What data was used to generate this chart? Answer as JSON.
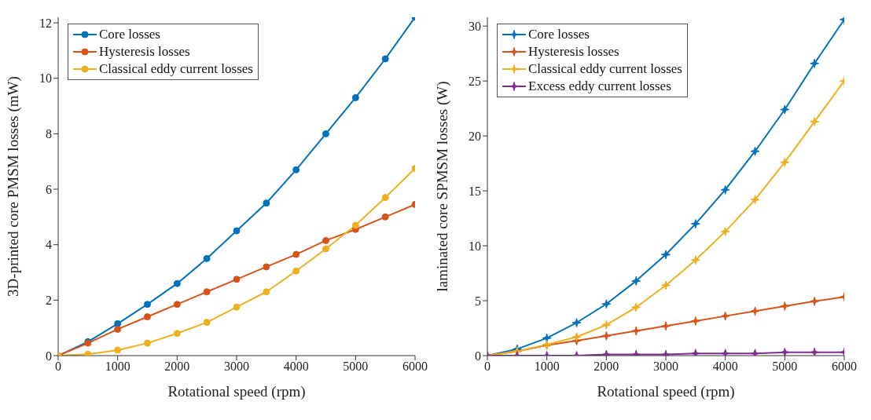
{
  "chart_data": [
    {
      "type": "line",
      "xlabel": "Rotational speed (rpm)",
      "ylabel": "3D-printed core PMSM losses (mW)",
      "x": [
        0,
        500,
        1000,
        1500,
        2000,
        2500,
        3000,
        3500,
        4000,
        4500,
        5000,
        5500,
        6000
      ],
      "xlim": [
        0,
        6000
      ],
      "xticks": [
        0,
        1000,
        2000,
        3000,
        4000,
        5000,
        6000
      ],
      "ylim": [
        0,
        12.2
      ],
      "yticks": [
        0,
        2,
        4,
        6,
        8,
        10,
        12
      ],
      "marker": "circle",
      "legend": "top left",
      "grid": false,
      "series": [
        {
          "name": "Core losses",
          "color": "#0072bd",
          "values": [
            0,
            0.5,
            1.15,
            1.85,
            2.6,
            3.5,
            4.5,
            5.5,
            6.7,
            8.0,
            9.3,
            10.7,
            12.2
          ]
        },
        {
          "name": "Hysteresis losses",
          "color": "#d95319",
          "values": [
            0,
            0.45,
            0.95,
            1.4,
            1.85,
            2.3,
            2.75,
            3.2,
            3.65,
            4.15,
            4.55,
            5.0,
            5.45
          ]
        },
        {
          "name": "Classical eddy current losses",
          "color": "#edb120",
          "values": [
            0,
            0.05,
            0.2,
            0.45,
            0.8,
            1.2,
            1.75,
            2.3,
            3.05,
            3.85,
            4.7,
            5.7,
            6.75
          ]
        }
      ]
    },
    {
      "type": "line",
      "xlabel": "Rotational speed (rpm)",
      "ylabel": "laminated core SPMSM losses (W)",
      "x": [
        0,
        500,
        1000,
        1500,
        2000,
        2500,
        3000,
        3500,
        4000,
        4500,
        5000,
        5500,
        6000
      ],
      "xlim": [
        0,
        6000
      ],
      "xticks": [
        0,
        1000,
        2000,
        3000,
        4000,
        5000,
        6000
      ],
      "ylim": [
        0,
        30.8
      ],
      "yticks": [
        0,
        5,
        10,
        15,
        20,
        25,
        30
      ],
      "marker": "star",
      "legend": "top left",
      "grid": false,
      "series": [
        {
          "name": "Core losses",
          "color": "#0072bd",
          "values": [
            0,
            0.6,
            1.6,
            3.0,
            4.7,
            6.8,
            9.2,
            12.0,
            15.1,
            18.6,
            22.4,
            26.6,
            30.6
          ]
        },
        {
          "name": "Hysteresis losses",
          "color": "#d95319",
          "values": [
            0,
            0.4,
            0.95,
            1.35,
            1.8,
            2.25,
            2.7,
            3.15,
            3.6,
            4.05,
            4.5,
            4.95,
            5.35
          ]
        },
        {
          "name": "Classical eddy current losses",
          "color": "#edb120",
          "values": [
            0,
            0.4,
            1.0,
            1.7,
            2.8,
            4.4,
            6.4,
            8.7,
            11.3,
            14.2,
            17.6,
            21.3,
            25.0
          ]
        },
        {
          "name": "Excess eddy current losses",
          "color": "#7e2f8e",
          "values": [
            0,
            0,
            0,
            0,
            0.1,
            0.1,
            0.1,
            0.2,
            0.2,
            0.2,
            0.3,
            0.3,
            0.3
          ]
        }
      ]
    }
  ]
}
